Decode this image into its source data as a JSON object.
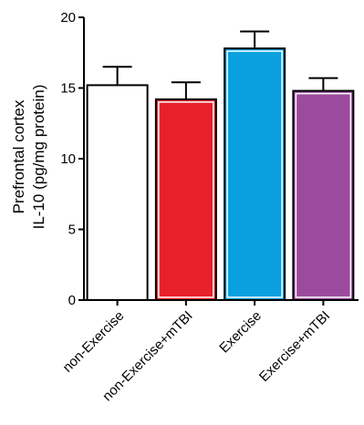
{
  "chart_data": {
    "type": "bar",
    "categories": [
      "non-Exercise",
      "non-Exercise+mTBI",
      "Exercise",
      "Exercise+mTBI"
    ],
    "values": [
      15.2,
      14.2,
      17.8,
      14.8
    ],
    "errors": [
      1.3,
      1.2,
      1.2,
      0.9
    ],
    "bar_colors": [
      "#ffffff",
      "#e8202a",
      "#0aa0e0",
      "#9b4a9e"
    ],
    "ylabel_lines": [
      "Prefrontal cortex",
      "IL-10 (pg/mg protein)"
    ],
    "ylim": [
      0,
      20
    ],
    "yticks": [
      0,
      5,
      10,
      15,
      20
    ],
    "grid": false,
    "legend": "none"
  }
}
